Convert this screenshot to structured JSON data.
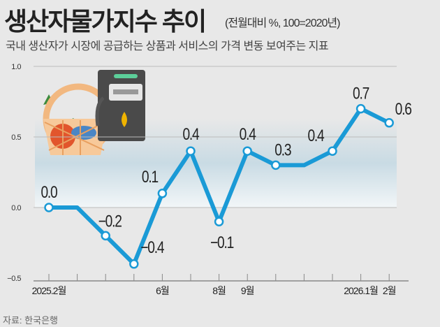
{
  "header": {
    "title": "생산자물가지수 추이",
    "unit": "(전월대비 %, 100=2020년)",
    "subtitle": "국내 생산자가 시장에 공급하는 상품과 서비스의 가격 변동 보여주는 지표"
  },
  "source": "자료: 한국은행",
  "colors": {
    "line": "#1a9ad6",
    "marker_fill": "#ffffff",
    "axis": "#888888",
    "text": "#222222"
  },
  "chart_data": {
    "type": "line",
    "title": "생산자물가지수 추이",
    "ylabel": "전월대비 %",
    "ylim": [
      -0.5,
      1.0
    ],
    "yticks": [
      "1.0",
      "0.5",
      "0.0",
      "−0.5"
    ],
    "ytick_values": [
      1.0,
      0.5,
      0.0,
      -0.5
    ],
    "x": [
      "2025.2",
      "2025.3",
      "2025.4",
      "2025.5",
      "2025.6",
      "2025.7",
      "2025.8",
      "2025.9",
      "2025.10",
      "2025.11",
      "2025.12",
      "2026.1",
      "2026.2"
    ],
    "xtick_labels": [
      "2025.2월",
      "",
      "",
      "",
      "6월",
      "",
      "8월",
      "9월",
      "",
      "",
      "",
      "2026.1월",
      "2월"
    ],
    "values": [
      0.0,
      0.0,
      -0.2,
      -0.4,
      0.1,
      0.4,
      -0.1,
      0.4,
      0.3,
      0.3,
      0.4,
      0.7,
      0.6
    ],
    "data_labels": [
      "0.0",
      "",
      "−0.2",
      "−0.4",
      "0.1",
      "0.4",
      "−0.1",
      "0.4",
      "0.3",
      "",
      "0.4",
      "0.7",
      "0.6"
    ],
    "legend": "none"
  }
}
